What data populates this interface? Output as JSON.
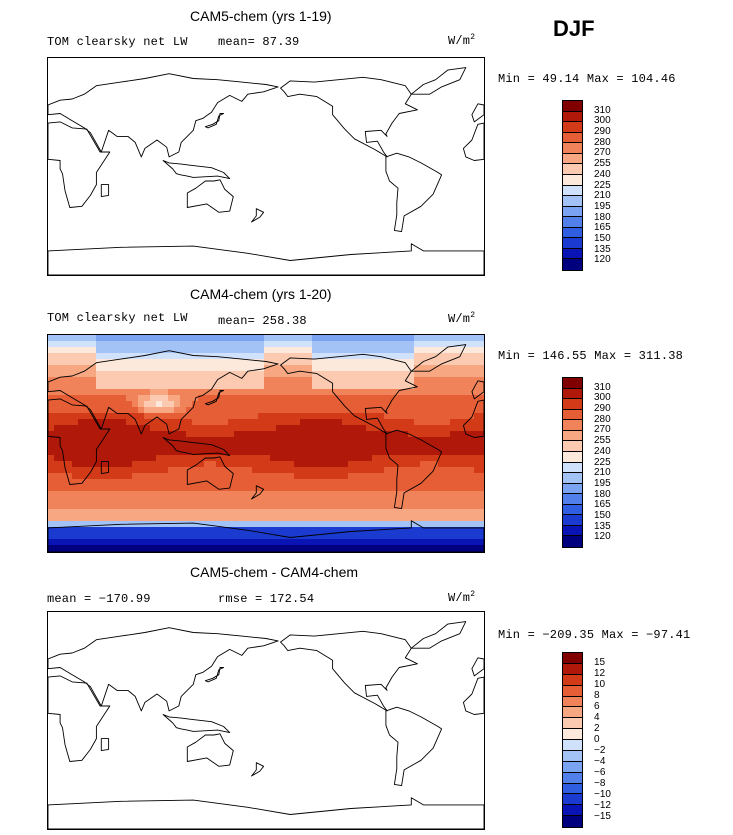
{
  "season": "DJF",
  "units_base": "W/m",
  "units_exp": "2",
  "palette": [
    "#00007f",
    "#0a14b4",
    "#1a3ad0",
    "#2f5fe0",
    "#5180ea",
    "#7aa3f1",
    "#a3c3f6",
    "#cfe1fb",
    "#fde9dc",
    "#fbcab0",
    "#f7a882",
    "#f1835a",
    "#e55e35",
    "#d23a18",
    "#b0190a",
    "#800000"
  ],
  "panels": [
    {
      "title": "CAM5-chem (yrs 1-19)",
      "left_label": "TOM clearsky net LW",
      "mid_label": "mean=  87.39",
      "range_label": "Min =  49.14 Max = 104.46",
      "field": "blank",
      "levels": [
        "310",
        "300",
        "290",
        "280",
        "270",
        "255",
        "240",
        "225",
        "210",
        "195",
        "180",
        "165",
        "150",
        "135",
        "120"
      ]
    },
    {
      "title": "CAM4-chem (yrs 1-20)",
      "left_label": "TOM clearsky net LW",
      "mid_label": "mean= 258.38",
      "range_label": "Min = 146.55 Max = 311.38",
      "field": "olr",
      "levels": [
        "310",
        "300",
        "290",
        "280",
        "270",
        "255",
        "240",
        "225",
        "210",
        "195",
        "180",
        "165",
        "150",
        "135",
        "120"
      ]
    },
    {
      "title": "CAM5-chem - CAM4-chem",
      "left_label": "mean = −170.99",
      "mid_label": "rmse = 172.54",
      "range_label": "Min = −209.35 Max = −97.41",
      "field": "blank",
      "levels": [
        "15",
        "12",
        "10",
        "8",
        "6",
        "4",
        "2",
        "0",
        "−2",
        "−4",
        "−6",
        "−8",
        "−10",
        "−12",
        "−15"
      ]
    }
  ]
}
